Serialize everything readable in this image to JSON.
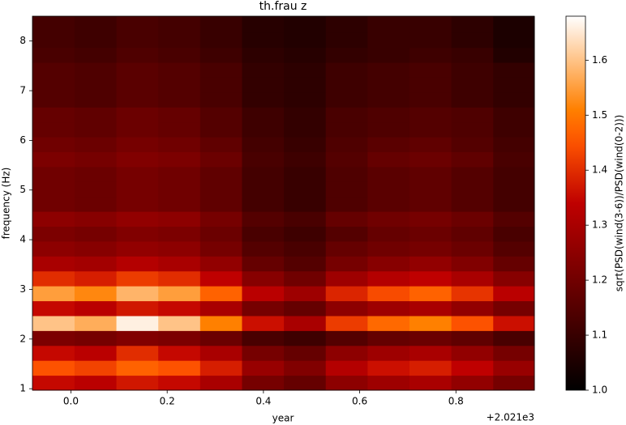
{
  "chart_data": {
    "type": "heatmap",
    "title": "th.frau z",
    "xlabel": "year",
    "ylabel": "frequency (Hz)",
    "x_offset_label": "+2.021e3",
    "colorbar_label": "sqrt(PSD(wind(3-6))/PSD(wind(0-2)))",
    "xlim": [
      -0.08,
      0.963
    ],
    "ylim": [
      0.97,
      8.5
    ],
    "clim": [
      1.0,
      1.68
    ],
    "xticks": [
      {
        "value": 0,
        "label": "0.0"
      },
      {
        "value": 0.2,
        "label": "0.2"
      },
      {
        "value": 0.4,
        "label": "0.4"
      },
      {
        "value": 0.6,
        "label": "0.6"
      },
      {
        "value": 0.8,
        "label": "0.8"
      }
    ],
    "yticks": [
      1,
      2,
      3,
      4,
      5,
      6,
      7,
      8
    ],
    "cticks": [
      {
        "value": 1,
        "label": "1.0"
      },
      {
        "value": 1.1,
        "label": "1.1"
      },
      {
        "value": 1.2,
        "label": "1.2"
      },
      {
        "value": 1.3,
        "label": "1.3"
      },
      {
        "value": 1.4,
        "label": "1.4"
      },
      {
        "value": 1.5,
        "label": "1.5"
      },
      {
        "value": 1.6,
        "label": "1.6"
      }
    ],
    "x": [
      -0.036,
      0.051,
      0.138,
      0.225,
      0.312,
      0.399,
      0.486,
      0.573,
      0.66,
      0.747,
      0.834,
      0.921
    ],
    "y": [
      1.12,
      1.42,
      1.72,
      2.02,
      2.32,
      2.62,
      2.92,
      3.22,
      3.52,
      3.82,
      4.12,
      4.42,
      4.72,
      5.02,
      5.32,
      5.62,
      5.92,
      6.22,
      6.52,
      6.82,
      7.12,
      7.42,
      7.72,
      8.02,
      8.32
    ],
    "z": [
      [
        1.35,
        1.33,
        1.37,
        1.35,
        1.3,
        1.21,
        1.18,
        1.25,
        1.28,
        1.3,
        1.26,
        1.21
      ],
      [
        1.45,
        1.43,
        1.47,
        1.45,
        1.38,
        1.27,
        1.23,
        1.32,
        1.36,
        1.38,
        1.34,
        1.27
      ],
      [
        1.35,
        1.33,
        1.4,
        1.35,
        1.3,
        1.21,
        1.18,
        1.25,
        1.28,
        1.3,
        1.26,
        1.21
      ],
      [
        1.22,
        1.21,
        1.23,
        1.22,
        1.19,
        1.13,
        1.11,
        1.15,
        1.18,
        1.19,
        1.17,
        1.13
      ],
      [
        1.6,
        1.57,
        1.66,
        1.6,
        1.51,
        1.36,
        1.3,
        1.42,
        1.48,
        1.51,
        1.45,
        1.36
      ],
      [
        1.35,
        1.33,
        1.37,
        1.35,
        1.3,
        1.21,
        1.18,
        1.25,
        1.28,
        1.3,
        1.26,
        1.21
      ],
      [
        1.55,
        1.52,
        1.58,
        1.55,
        1.47,
        1.33,
        1.28,
        1.39,
        1.44,
        1.47,
        1.41,
        1.33
      ],
      [
        1.4,
        1.38,
        1.42,
        1.4,
        1.34,
        1.24,
        1.2,
        1.28,
        1.32,
        1.34,
        1.3,
        1.24
      ],
      [
        1.3,
        1.29,
        1.32,
        1.3,
        1.26,
        1.18,
        1.15,
        1.21,
        1.24,
        1.26,
        1.23,
        1.18
      ],
      [
        1.25,
        1.24,
        1.26,
        1.25,
        1.21,
        1.15,
        1.13,
        1.18,
        1.2,
        1.21,
        1.19,
        1.15
      ],
      [
        1.22,
        1.21,
        1.23,
        1.22,
        1.19,
        1.13,
        1.11,
        1.15,
        1.18,
        1.19,
        1.17,
        1.13
      ],
      [
        1.25,
        1.24,
        1.26,
        1.25,
        1.21,
        1.15,
        1.13,
        1.18,
        1.2,
        1.21,
        1.19,
        1.15
      ],
      [
        1.2,
        1.19,
        1.21,
        1.2,
        1.17,
        1.12,
        1.1,
        1.14,
        1.16,
        1.17,
        1.15,
        1.12
      ],
      [
        1.2,
        1.19,
        1.21,
        1.2,
        1.17,
        1.12,
        1.1,
        1.14,
        1.16,
        1.17,
        1.15,
        1.12
      ],
      [
        1.2,
        1.19,
        1.21,
        1.2,
        1.17,
        1.12,
        1.1,
        1.14,
        1.16,
        1.17,
        1.15,
        1.12
      ],
      [
        1.22,
        1.21,
        1.23,
        1.22,
        1.19,
        1.13,
        1.11,
        1.15,
        1.18,
        1.19,
        1.17,
        1.13
      ],
      [
        1.2,
        1.19,
        1.21,
        1.2,
        1.17,
        1.12,
        1.1,
        1.14,
        1.16,
        1.17,
        1.15,
        1.12
      ],
      [
        1.18,
        1.17,
        1.19,
        1.18,
        1.15,
        1.11,
        1.09,
        1.13,
        1.14,
        1.15,
        1.14,
        1.11
      ],
      [
        1.18,
        1.17,
        1.19,
        1.18,
        1.15,
        1.11,
        1.09,
        1.13,
        1.14,
        1.15,
        1.14,
        1.11
      ],
      [
        1.15,
        1.14,
        1.16,
        1.15,
        1.13,
        1.09,
        1.08,
        1.11,
        1.12,
        1.13,
        1.11,
        1.09
      ],
      [
        1.15,
        1.14,
        1.16,
        1.15,
        1.13,
        1.09,
        1.08,
        1.11,
        1.12,
        1.13,
        1.11,
        1.09
      ],
      [
        1.15,
        1.14,
        1.16,
        1.15,
        1.13,
        1.09,
        1.08,
        1.11,
        1.12,
        1.13,
        1.11,
        1.09
      ],
      [
        1.13,
        1.12,
        1.14,
        1.13,
        1.11,
        1.08,
        1.07,
        1.09,
        1.1,
        1.11,
        1.1,
        1.06
      ],
      [
        1.12,
        1.11,
        1.13,
        1.12,
        1.1,
        1.07,
        1.06,
        1.08,
        1.1,
        1.1,
        1.08,
        1.05
      ],
      [
        1.12,
        1.11,
        1.13,
        1.12,
        1.1,
        1.07,
        1.06,
        1.08,
        1.1,
        1.1,
        1.08,
        1.05
      ]
    ]
  }
}
